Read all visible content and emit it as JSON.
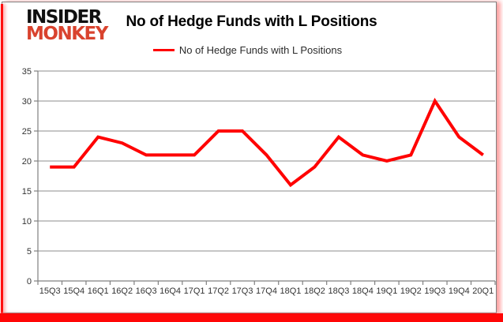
{
  "brand": {
    "line1": "INSIDER",
    "line2": "MONKEY"
  },
  "title": "No of Hedge Funds with L Positions",
  "legend": {
    "label": "No of Hedge Funds with L Positions",
    "swatch_color": "#ff0000"
  },
  "colors": {
    "line": "#ff0000",
    "grid": "#8e8e8e",
    "axis": "#808080",
    "tick_label": "#333333",
    "frame_red": "#ff0606",
    "panel_border": "#7f7f7f",
    "logo_red": "#d9432e"
  },
  "chart_data": {
    "type": "line",
    "title": "No of Hedge Funds with L Positions",
    "categories": [
      "15Q3",
      "15Q4",
      "16Q1",
      "16Q2",
      "16Q3",
      "16Q4",
      "17Q1",
      "17Q2",
      "17Q3",
      "17Q4",
      "18Q1",
      "18Q2",
      "18Q3",
      "18Q4",
      "19Q1",
      "19Q2",
      "19Q3",
      "19Q4",
      "20Q1"
    ],
    "series": [
      {
        "name": "No of Hedge Funds with L Positions",
        "color": "#ff0000",
        "values": [
          19,
          19,
          24,
          23,
          21,
          21,
          21,
          25,
          25,
          21,
          16,
          19,
          24,
          21,
          20,
          21,
          30,
          24,
          21
        ]
      }
    ],
    "xlabel": "",
    "ylabel": "",
    "ylim": [
      0,
      35
    ],
    "yticks": [
      0,
      5,
      10,
      15,
      20,
      25,
      30,
      35
    ],
    "grid": true,
    "legend_position": "top"
  }
}
